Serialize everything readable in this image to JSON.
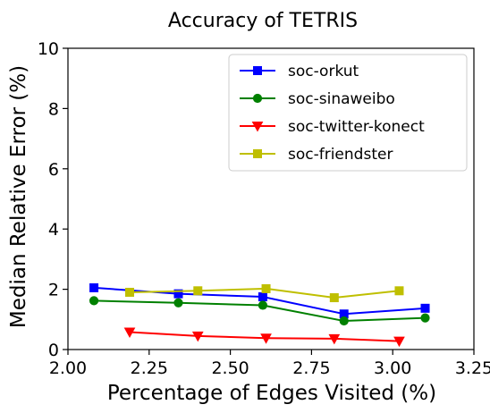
{
  "chart_data": {
    "type": "line",
    "title": "Accuracy of TETRIS",
    "xlabel": "Percentage of Edges Visited (%)",
    "ylabel": "Median Relative Error (%)",
    "xlim": [
      2.0,
      3.25
    ],
    "ylim": [
      0,
      10
    ],
    "xticks": [
      "2.00",
      "2.25",
      "2.50",
      "2.75",
      "3.00",
      "3.25"
    ],
    "yticks": [
      "0",
      "2",
      "4",
      "6",
      "8",
      "10"
    ],
    "grid": false,
    "legend_position": "top-right",
    "series": [
      {
        "name": "soc-orkut",
        "color": "#0000ff",
        "marker": "square",
        "x": [
          2.08,
          2.34,
          2.6,
          2.85,
          3.1
        ],
        "y": [
          2.05,
          1.85,
          1.75,
          1.18,
          1.37
        ]
      },
      {
        "name": "soc-sinaweibo",
        "color": "#008000",
        "marker": "circle",
        "x": [
          2.08,
          2.34,
          2.6,
          2.85,
          3.1
        ],
        "y": [
          1.62,
          1.55,
          1.47,
          0.95,
          1.05
        ]
      },
      {
        "name": "soc-twitter-konect",
        "color": "#ff0000",
        "marker": "triangle-down",
        "x": [
          2.19,
          2.4,
          2.61,
          2.82,
          3.02
        ],
        "y": [
          0.58,
          0.45,
          0.38,
          0.36,
          0.28
        ]
      },
      {
        "name": "soc-friendster",
        "color": "#bfbf00",
        "marker": "square",
        "x": [
          2.19,
          2.4,
          2.61,
          2.82,
          3.02
        ],
        "y": [
          1.9,
          1.95,
          2.02,
          1.72,
          1.95
        ]
      }
    ]
  }
}
